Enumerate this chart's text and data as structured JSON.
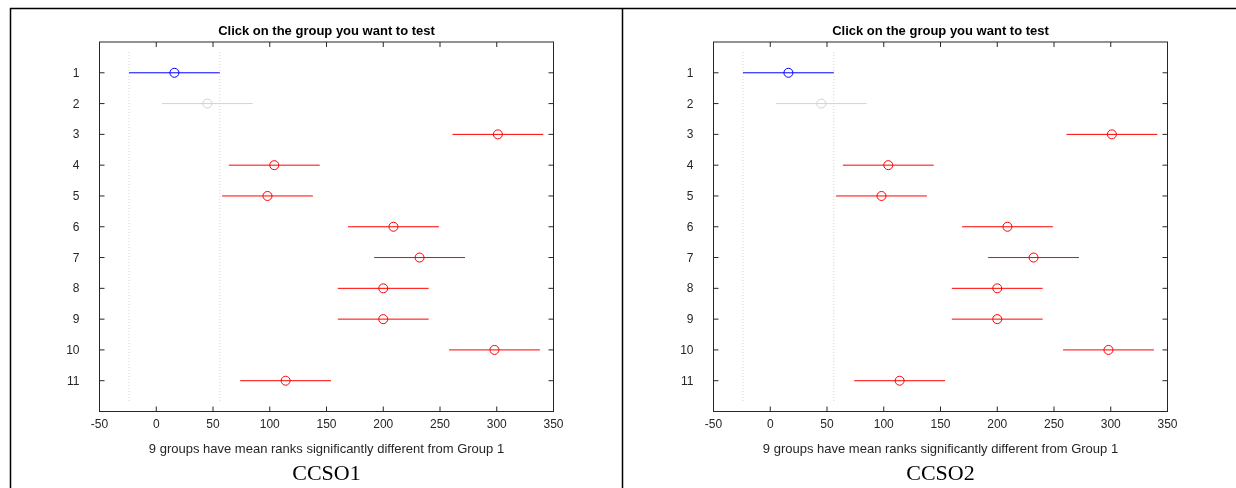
{
  "chart_data": [
    {
      "type": "scatter",
      "title": "Click on the group you want to test",
      "xlabel": "9 groups have mean ranks significantly different from Group 1",
      "annotations": [
        "CCSO1"
      ],
      "x": [
        16,
        45,
        301,
        104,
        98,
        209,
        232,
        200,
        200,
        298,
        114
      ],
      "values": [
        1,
        2,
        3,
        4,
        5,
        6,
        7,
        8,
        9,
        10,
        11
      ],
      "xerrors": [
        40,
        40,
        40,
        40,
        40,
        40,
        40,
        40,
        40,
        40,
        40
      ],
      "colors": [
        "#0000ff",
        "#d3d3d3",
        "#ff0000",
        "#ff0000",
        "#ff0000",
        "#ff0000",
        "#ff0000",
        "#ff0000",
        "#ff0000",
        "#ff0000",
        "#ff0000"
      ],
      "marker": "circle",
      "xlim": [
        -50,
        350
      ],
      "xticks": [
        -50,
        0,
        50,
        100,
        150,
        200,
        250,
        300,
        350
      ],
      "ylim": [
        12,
        0
      ],
      "yticks": [
        1,
        2,
        3,
        4,
        5,
        6,
        7,
        8,
        9,
        10,
        11
      ],
      "ref_lines": [
        {
          "axis": "x",
          "value": -24,
          "color": "#d3d3d3",
          "line_style": "dotted"
        },
        {
          "axis": "x",
          "value": 56,
          "color": "#d3d3d3",
          "line_style": "dotted"
        }
      ]
    },
    {
      "type": "scatter",
      "title": "Click on the group you want to test",
      "xlabel": "9 groups have mean ranks significantly different from Group 1",
      "annotations": [
        "CCSO2"
      ],
      "x": [
        16,
        45,
        301,
        104,
        98,
        209,
        232,
        200,
        200,
        298,
        114
      ],
      "values": [
        1,
        2,
        3,
        4,
        5,
        6,
        7,
        8,
        9,
        10,
        11
      ],
      "xerrors": [
        40,
        40,
        40,
        40,
        40,
        40,
        40,
        40,
        40,
        40,
        40
      ],
      "colors": [
        "#0000ff",
        "#d3d3d3",
        "#ff0000",
        "#ff0000",
        "#ff0000",
        "#ff0000",
        "#ff0000",
        "#ff0000",
        "#ff0000",
        "#ff0000",
        "#ff0000"
      ],
      "marker": "circle",
      "xlim": [
        -50,
        350
      ],
      "xticks": [
        -50,
        0,
        50,
        100,
        150,
        200,
        250,
        300,
        350
      ],
      "ylim": [
        12,
        0
      ],
      "yticks": [
        1,
        2,
        3,
        4,
        5,
        6,
        7,
        8,
        9,
        10,
        11
      ],
      "ref_lines": [
        {
          "axis": "x",
          "value": -24,
          "color": "#d3d3d3",
          "line_style": "dotted"
        },
        {
          "axis": "x",
          "value": 56,
          "color": "#d3d3d3",
          "line_style": "dotted"
        }
      ]
    }
  ]
}
